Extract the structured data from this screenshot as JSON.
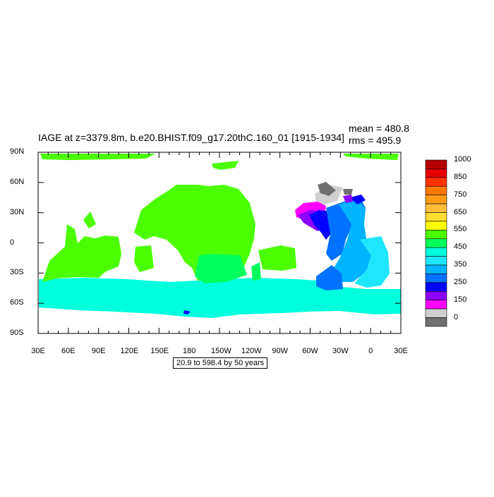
{
  "header": {
    "title": "IAGE at z=3379.8m, b.e20.BHIST.f09_g17.20thC.160_01 [1915-1934]",
    "mean_text": "mean = 480.8",
    "rms_text": "rms = 495.9"
  },
  "footer": {
    "range_text": "20.9 to 598.4 by 50 years"
  },
  "map": {
    "projection": "cylindrical equidistant",
    "lon_range": [
      30,
      390
    ],
    "lat_range": [
      -90,
      90
    ],
    "lat_tick_labels": [
      "90N",
      "60N",
      "30N",
      "0",
      "30S",
      "60S",
      "90S"
    ],
    "lon_tick_labels": [
      "30E",
      "60E",
      "90E",
      "120E",
      "150E",
      "180",
      "150W",
      "120W",
      "90W",
      "60W",
      "30W",
      "0",
      "30E"
    ],
    "field_colors": {
      "green_550": "#4cff00",
      "light_green_500": "#00ff5a",
      "cyan_450": "#00ffdc",
      "sky_400": "#1ee6ff",
      "blue_350": "#00b4ff",
      "blue_300": "#0072ff",
      "blue_250": "#0000ff",
      "purple_200": "#8c00ff",
      "magenta_150": "#ff00ff",
      "gray_light": "#d0d0d0",
      "gray_dark": "#707070"
    }
  },
  "colorbar": {
    "labels": [
      "1000",
      "850",
      "750",
      "650",
      "550",
      "450",
      "350",
      "250",
      "150",
      "0"
    ],
    "colors": [
      "#b40000",
      "#e60000",
      "#ff3200",
      "#ff7800",
      "#ff9b14",
      "#ffbe37",
      "#ffdc32",
      "#ffff00",
      "#4cff00",
      "#00ff5a",
      "#00ffdc",
      "#1ee6ff",
      "#00b4ff",
      "#0072ff",
      "#0000ff",
      "#8c00ff",
      "#ff00ff",
      "#d0d0d0",
      "#707070"
    ]
  }
}
